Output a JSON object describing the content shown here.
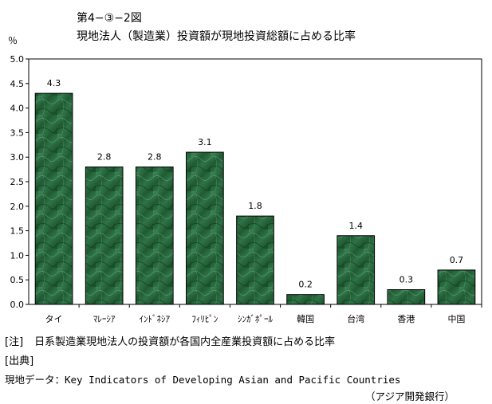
{
  "header": {
    "figure_number": "第4−③−2図",
    "title": "現地法人（製造業）投資額が現地投資総額に占める比率",
    "unit": "％"
  },
  "chart_data": {
    "type": "bar",
    "categories": [
      "タイ",
      "ﾏﾚｰｼｱ",
      "ｲﾝﾄﾞﾈｼｱ",
      "ﾌｨﾘﾋﾟﾝ",
      "ｼﾝｶﾞﾎﾟｰﾙ",
      "韓国",
      "台湾",
      "香港",
      "中国"
    ],
    "values": [
      4.3,
      2.8,
      2.8,
      3.1,
      1.8,
      0.2,
      1.4,
      0.3,
      0.7
    ],
    "value_labels": [
      "4.3",
      "2.8",
      "2.8",
      "3.1",
      "1.8",
      "0.2",
      "1.4",
      "0.3",
      "0.7"
    ],
    "ylim": [
      0,
      5.0
    ],
    "yticks": [
      "0.0",
      "0.5",
      "1.0",
      "1.5",
      "2.0",
      "2.5",
      "3.0",
      "3.5",
      "4.0",
      "4.5",
      "5.0"
    ],
    "grid": false,
    "legend": "none",
    "bar_color": "#2e6b42",
    "bar_highlight": "#6fa882"
  },
  "notes": {
    "note_label": "[注]",
    "note_text": "日系製造業現地法人の投資額が各国内全産業投資額に占める比率",
    "source_label": "[出典]",
    "source_text": "現地データ：Key Indicators of Developing Asian and Pacific Countries",
    "source_publisher": "（アジア開発銀行）"
  }
}
